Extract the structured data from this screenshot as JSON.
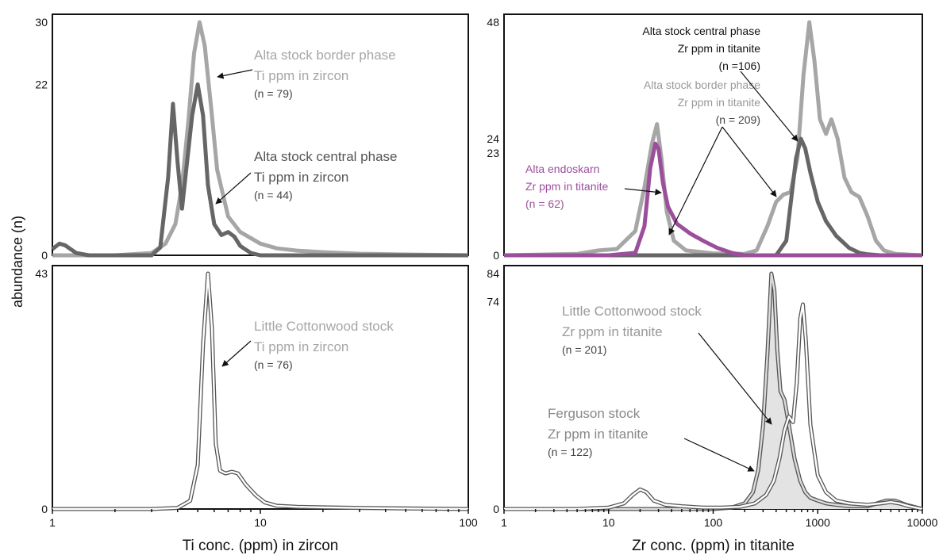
{
  "chart_data": {
    "type": "line",
    "ylabel": "abundance (n)",
    "colors": {
      "light_gray": "#a6a6a6",
      "dark_gray": "#666666",
      "purple": "#9b4f9b",
      "outline": "#555555"
    },
    "panels": [
      {
        "xlabel": "",
        "x_scale": "log",
        "xlim": [
          1,
          100
        ],
        "x_ticks": [],
        "y_ticks": [
          {
            "value": 30,
            "label": "30",
            "color": "#888888"
          },
          {
            "value": 22,
            "label": "22",
            "color": "#111111"
          },
          {
            "value": 0,
            "label": "0",
            "color": "#111111"
          }
        ],
        "ylim": [
          0,
          30
        ],
        "series": [
          {
            "name": "Alta stock border phase Ti ppm in zircon",
            "n": "(n = 79)",
            "style": "light_gray",
            "x": [
              1,
              2,
              3,
              3.5,
              3.9,
              4.2,
              4.5,
              4.8,
              5.1,
              5.4,
              5.8,
              6.2,
              7,
              8,
              10,
              12,
              15,
              20,
              30,
              50,
              100
            ],
            "y": [
              0,
              0,
              0.3,
              1.5,
              4,
              9,
              17,
              26,
              30,
              27,
              19,
              11,
              5,
              3,
              1.5,
              0.9,
              0.6,
              0.4,
              0.2,
              0.1,
              0
            ]
          },
          {
            "name": "Alta stock central phase Ti ppm in zircon",
            "n": "(n = 44)",
            "style": "dark_gray",
            "x": [
              1,
              1.08,
              1.15,
              1.3,
              1.5,
              2,
              3,
              3.3,
              3.6,
              3.8,
              4.0,
              4.2,
              4.4,
              4.7,
              5.0,
              5.3,
              5.6,
              6.0,
              6.5,
              7,
              7.5,
              8,
              9,
              10,
              12,
              20,
              100
            ],
            "y": [
              0.8,
              1.5,
              1.3,
              0.3,
              0,
              0,
              0,
              1,
              10,
              19.5,
              12,
              6,
              11,
              18,
              22,
              18,
              9,
              4,
              2.6,
              3,
              2.4,
              1.2,
              0.3,
              0,
              0,
              0,
              0
            ]
          }
        ]
      },
      {
        "xlabel": "Ti conc. (ppm) in zircon",
        "x_scale": "log",
        "xlim": [
          1,
          100
        ],
        "x_ticks": [
          {
            "value": 1,
            "label": "1"
          },
          {
            "value": 10,
            "label": "10"
          },
          {
            "value": 100,
            "label": "100"
          }
        ],
        "y_ticks": [
          {
            "value": 43,
            "label": "43",
            "color": "#888888"
          },
          {
            "value": 0,
            "label": "0",
            "color": "#111111"
          }
        ],
        "ylim": [
          0,
          43
        ],
        "series": [
          {
            "name": "Little Cottonwood stock Ti ppm in zircon",
            "n": "(n = 76)",
            "style": "outline",
            "x": [
              1,
              2,
              3,
              4,
              4.6,
              5.0,
              5.3,
              5.6,
              5.85,
              6.1,
              6.4,
              6.8,
              7.3,
              7.8,
              8.5,
              9.5,
              10.5,
              12,
              15,
              20,
              30,
              50,
              100
            ],
            "y": [
              0,
              0,
              0,
              0.2,
              1.5,
              8,
              30,
              43,
              33,
              12,
              7,
              6.5,
              6.8,
              6.5,
              4.5,
              2.5,
              1.2,
              0.6,
              0.4,
              0.3,
              0.2,
              0.1,
              0
            ]
          }
        ]
      },
      {
        "xlabel": "",
        "x_scale": "log",
        "xlim": [
          1,
          10000
        ],
        "x_ticks": [],
        "y_ticks": [
          {
            "value": 48,
            "label": "48",
            "color": "#111111"
          },
          {
            "value": 24,
            "label": "24",
            "color": "#111111"
          },
          {
            "value": 23,
            "label": "23",
            "color": "#9b4f9b"
          },
          {
            "value": 0,
            "label": "0",
            "color": "#111111"
          }
        ],
        "ylim": [
          0,
          48
        ],
        "series": [
          {
            "name": "Alta stock border phase Zr ppm in titanite",
            "n": "(n = 209)",
            "style": "light_gray",
            "x": [
              1,
              5,
              8,
              12,
              18,
              22,
              26,
              29,
              32,
              36,
              42,
              55,
              100,
              200,
              260,
              330,
              400,
              470,
              550,
              640,
              730,
              830,
              930,
              1050,
              1200,
              1350,
              1550,
              1800,
              2100,
              2500,
              3000,
              3600,
              4300,
              5500,
              10000
            ],
            "y": [
              0,
              0.3,
              1,
              1.3,
              5,
              14,
              23,
              27,
              20,
              9,
              3,
              1,
              0.4,
              0.3,
              1,
              6,
              11,
              12.5,
              13,
              20,
              37,
              48,
              40,
              28,
              25,
              28,
              24,
              16,
              13,
              12,
              8,
              3,
              1,
              0.3,
              0
            ]
          },
          {
            "name": "Alta stock central phase Zr ppm in titanite",
            "n": "(n =106)",
            "style": "dark_gray",
            "x": [
              1,
              100,
              400,
              500,
              560,
              620,
              690,
              760,
              850,
              1000,
              1200,
              1500,
              2000,
              2500,
              3000,
              4000,
              10000
            ],
            "y": [
              0,
              0,
              0,
              3,
              12,
              20,
              24,
              22,
              17,
              11,
              7,
              4,
              1.5,
              0.5,
              0.2,
              0,
              0
            ]
          },
          {
            "name": "Alta endoskarn Zr ppm in titanite",
            "n": "(n = 62)",
            "style": "purple",
            "x": [
              1,
              10,
              18,
              22,
              25,
              28,
              30,
              33,
              37,
              45,
              60,
              80,
              110,
              150,
              200,
              300,
              10000
            ],
            "y": [
              0,
              0,
              0.5,
              6,
              18,
              23,
              22,
              15,
              10,
              6.5,
              4.5,
              3,
              1.5,
              0.5,
              0,
              0,
              0
            ]
          }
        ]
      },
      {
        "xlabel": "Zr conc. (ppm) in titanite",
        "x_scale": "log",
        "xlim": [
          1,
          10000
        ],
        "x_ticks": [
          {
            "value": 1,
            "label": "1"
          },
          {
            "value": 10,
            "label": "10"
          },
          {
            "value": 100,
            "label": "100"
          },
          {
            "value": 1000,
            "label": "1000"
          },
          {
            "value": 10000,
            "label": "10000"
          }
        ],
        "y_ticks": [
          {
            "value": 84,
            "label": "84",
            "color": "#111111"
          },
          {
            "value": 74,
            "label": "74",
            "color": "#111111"
          },
          {
            "value": 0,
            "label": "0",
            "color": "#111111"
          }
        ],
        "ylim": [
          0,
          84
        ],
        "series": [
          {
            "name": "Ferguson stock Zr ppm in titanite",
            "n": "(n = 122)",
            "style": "filled_outline",
            "x": [
              1,
              10,
              100,
              150,
              200,
              240,
              270,
              300,
              330,
              360,
              385,
              410,
              440,
              480,
              530,
              600,
              680,
              760,
              850,
              1000,
              1200,
              1500,
              2000,
              3000,
              4500,
              5500,
              7000,
              10000
            ],
            "y": [
              0,
              0,
              0,
              0.5,
              2,
              6,
              14,
              30,
              55,
              84,
              78,
              57,
              42,
              39,
              30,
              18,
              10,
              6,
              4,
              3,
              2,
              1.5,
              1,
              1,
              3,
              3,
              1.5,
              0
            ]
          },
          {
            "name": "Little Cottonwood stock Zr ppm in titanite",
            "n": "(n = 201)",
            "style": "outline",
            "x": [
              1,
              5,
              10,
              14,
              17,
              20,
              23,
              27,
              35,
              50,
              80,
              120,
              180,
              250,
              320,
              380,
              430,
              480,
              530,
              580,
              630,
              680,
              720,
              770,
              850,
              1000,
              1200,
              1500,
              2000,
              3000,
              4000,
              5000,
              6000,
              7500,
              10000
            ],
            "y": [
              0,
              0,
              0.5,
              2,
              5,
              7,
              6,
              3,
              1.5,
              1,
              0.5,
              0.5,
              0.8,
              2,
              5,
              10,
              18,
              28,
              33,
              31,
              45,
              68,
              73,
              60,
              30,
              12,
              6,
              3,
              2,
              1.5,
              2,
              2.5,
              2,
              1,
              0
            ]
          }
        ]
      }
    ],
    "annotations": [
      {
        "panel": 0,
        "lines": [
          "Alta stock border phase",
          "Ti ppm in zircon"
        ],
        "n": "(n = 79)",
        "color": "#a6a6a6"
      },
      {
        "panel": 0,
        "lines": [
          "Alta stock central phase",
          "Ti ppm in zircon"
        ],
        "n": "(n = 44)",
        "color": "#555555"
      },
      {
        "panel": 1,
        "lines": [
          "Little Cottonwood stock",
          "Ti ppm in zircon"
        ],
        "n": "(n = 76)",
        "color": "#a6a6a6"
      },
      {
        "panel": 2,
        "lines": [
          "Alta stock central phase",
          "Zr ppm in titanite"
        ],
        "n": "(n =106)",
        "color": "#111111"
      },
      {
        "panel": 2,
        "lines": [
          "Alta stock border phase",
          "Zr ppm in titanite"
        ],
        "n": "(n = 209)",
        "color": "#999999"
      },
      {
        "panel": 2,
        "lines": [
          "Alta endoskarn",
          "Zr ppm in titanite"
        ],
        "n": "(n = 62)",
        "color": "#9b4f9b"
      },
      {
        "panel": 3,
        "lines": [
          "Little Cottonwood stock",
          "Zr ppm in titanite"
        ],
        "n": "(n = 201)",
        "color": "#999999"
      },
      {
        "panel": 3,
        "lines": [
          "Ferguson stock",
          "Zr ppm in titanite"
        ],
        "n": "(n = 122)",
        "color": "#888888"
      }
    ]
  }
}
